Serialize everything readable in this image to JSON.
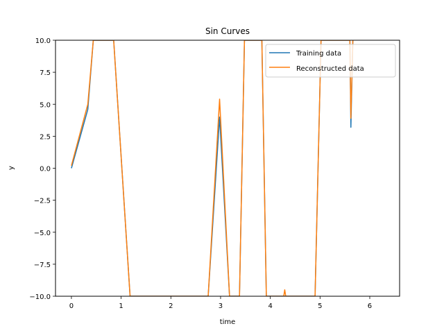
{
  "chart_data": {
    "type": "line",
    "title": "Sin Curves",
    "xlabel": "time",
    "ylabel": "y",
    "xlim": [
      -0.32,
      6.6
    ],
    "ylim": [
      -10,
      10
    ],
    "xticks": [
      0,
      1,
      2,
      3,
      4,
      5,
      6
    ],
    "yticks": [
      -10.0,
      -7.5,
      -5.0,
      -2.5,
      0.0,
      2.5,
      5.0,
      7.5,
      10.0
    ],
    "ytick_labels": [
      "−10.0",
      "−7.5",
      "−5.0",
      "−2.5",
      "0.0",
      "2.5",
      "5.0",
      "7.5",
      "10.0"
    ],
    "grid": false,
    "legend_position": "top-right",
    "series": [
      {
        "name": "Training data",
        "color": "#1f77b4",
        "x": [
          0.0,
          0.33,
          0.44,
          0.85,
          1.18,
          2.75,
          2.98,
          3.18,
          3.38,
          3.48,
          3.83,
          3.92,
          4.3,
          4.9,
          5.02,
          5.6,
          5.62,
          5.66
        ],
        "y": [
          0.0,
          4.6,
          10.0,
          10.0,
          -10.0,
          -10.0,
          4.0,
          -10.0,
          -10.0,
          10.0,
          10.0,
          -10.0,
          -10.0,
          -10.0,
          10.0,
          10.0,
          3.2,
          10.0
        ]
      },
      {
        "name": "Reconstructed data",
        "color": "#ff7f0e",
        "x": [
          0.0,
          0.33,
          0.44,
          0.85,
          1.18,
          2.75,
          2.98,
          3.18,
          3.38,
          3.48,
          3.83,
          3.92,
          4.27,
          4.29,
          4.31,
          4.9,
          5.02,
          5.6,
          5.62,
          5.66
        ],
        "y": [
          0.2,
          5.0,
          10.0,
          10.0,
          -10.0,
          -10.0,
          5.4,
          -10.0,
          -10.0,
          10.0,
          10.0,
          -10.0,
          -10.0,
          -9.5,
          -10.0,
          -10.0,
          10.0,
          10.0,
          3.9,
          10.0
        ]
      }
    ]
  }
}
